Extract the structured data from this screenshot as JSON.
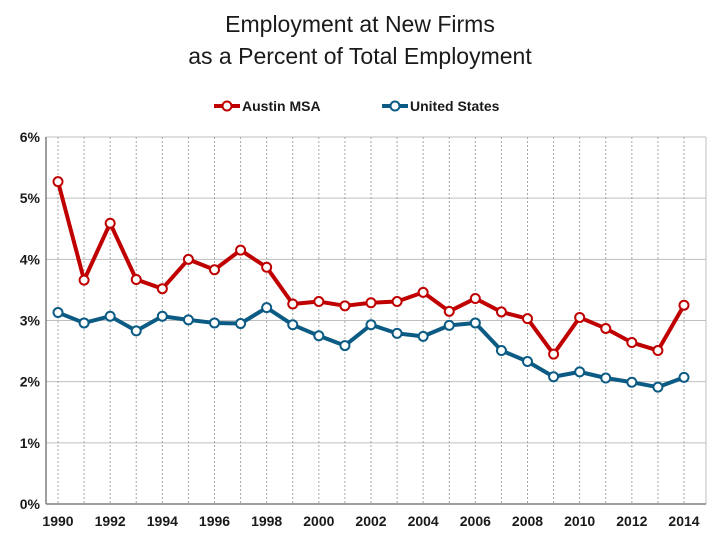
{
  "chart_data": {
    "type": "line",
    "title_line1": "Employment at New Firms",
    "title_line2": "as a Percent of Total Employment",
    "xlabel": "",
    "ylabel": "",
    "x": [
      1990,
      1991,
      1992,
      1993,
      1994,
      1995,
      1996,
      1997,
      1998,
      1999,
      2000,
      2001,
      2002,
      2003,
      2004,
      2005,
      2006,
      2007,
      2008,
      2009,
      2010,
      2011,
      2012,
      2013,
      2014
    ],
    "x_ticks": [
      "1990",
      "1992",
      "1994",
      "1996",
      "1998",
      "2000",
      "2002",
      "2004",
      "2006",
      "2008",
      "2010",
      "2012",
      "2014"
    ],
    "ylim": [
      0,
      6
    ],
    "y_ticks": [
      "0%",
      "1%",
      "2%",
      "3%",
      "4%",
      "5%",
      "6%"
    ],
    "grid": true,
    "legend_position": "top-center",
    "series": [
      {
        "name": "Austin MSA",
        "color": "#c00000",
        "values": [
          5.27,
          3.66,
          4.59,
          3.67,
          3.52,
          4.0,
          3.83,
          4.15,
          3.87,
          3.27,
          3.31,
          3.24,
          3.29,
          3.31,
          3.46,
          3.15,
          3.36,
          3.14,
          3.03,
          2.45,
          3.05,
          2.87,
          2.64,
          2.51,
          3.25
        ]
      },
      {
        "name": "United States",
        "color": "#0b5b84",
        "values": [
          3.13,
          2.96,
          3.07,
          2.83,
          3.07,
          3.01,
          2.96,
          2.95,
          3.21,
          2.93,
          2.75,
          2.59,
          2.93,
          2.79,
          2.74,
          2.92,
          2.96,
          2.51,
          2.33,
          2.08,
          2.16,
          2.06,
          1.99,
          1.91,
          2.07
        ]
      }
    ]
  }
}
